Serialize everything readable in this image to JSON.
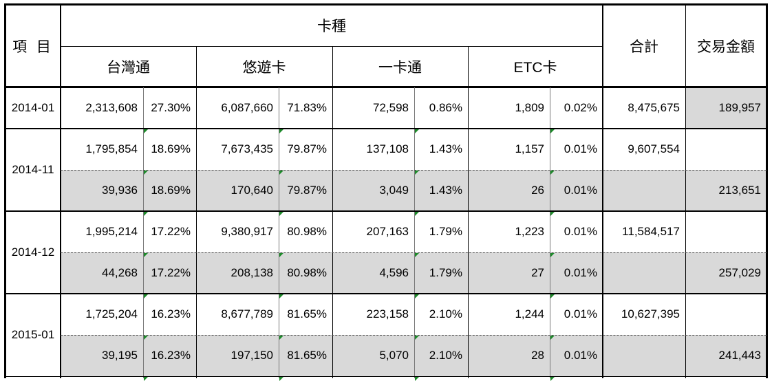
{
  "header": {
    "item_label": "項 目",
    "card_type_label": "卡種",
    "total_label": "合計",
    "amount_label": "交易金額",
    "cards": [
      "台灣通",
      "悠遊卡",
      "一卡通",
      "ETC卡"
    ]
  },
  "rows": [
    {
      "period": "2014-01",
      "cells": [
        "2,313,608",
        "27.30%",
        "6,087,660",
        "71.83%",
        "72,598",
        "0.86%",
        "1,809",
        "0.02%"
      ],
      "total": "8,475,675",
      "amount": "189,957"
    },
    {
      "period": "2014-11",
      "cells": [
        "1,795,854",
        "18.69%",
        "7,673,435",
        "79.87%",
        "137,108",
        "1.43%",
        "1,157",
        "0.01%"
      ],
      "total": "9,607,554",
      "amount": ""
    },
    {
      "period": "",
      "cells": [
        "39,936",
        "18.69%",
        "170,640",
        "79.87%",
        "3,049",
        "1.43%",
        "26",
        "0.01%"
      ],
      "total": "",
      "amount": "213,651"
    },
    {
      "period": "2014-12",
      "cells": [
        "1,995,214",
        "17.22%",
        "9,380,917",
        "80.98%",
        "207,163",
        "1.79%",
        "1,223",
        "0.01%"
      ],
      "total": "11,584,517",
      "amount": ""
    },
    {
      "period": "",
      "cells": [
        "44,268",
        "17.22%",
        "208,138",
        "80.98%",
        "4,596",
        "1.79%",
        "27",
        "0.01%"
      ],
      "total": "",
      "amount": "257,029"
    },
    {
      "period": "2015-01",
      "cells": [
        "1,725,204",
        "16.23%",
        "8,677,789",
        "81.65%",
        "223,158",
        "2.10%",
        "1,244",
        "0.01%"
      ],
      "total": "10,627,395",
      "amount": ""
    },
    {
      "period": "",
      "cells": [
        "39,195",
        "16.23%",
        "197,150",
        "81.65%",
        "5,070",
        "2.10%",
        "28",
        "0.01%"
      ],
      "total": "",
      "amount": "241,443"
    }
  ],
  "colors": {
    "shade": "#d9d9d9",
    "marker": "#1d8a2a",
    "border": "#000000"
  }
}
